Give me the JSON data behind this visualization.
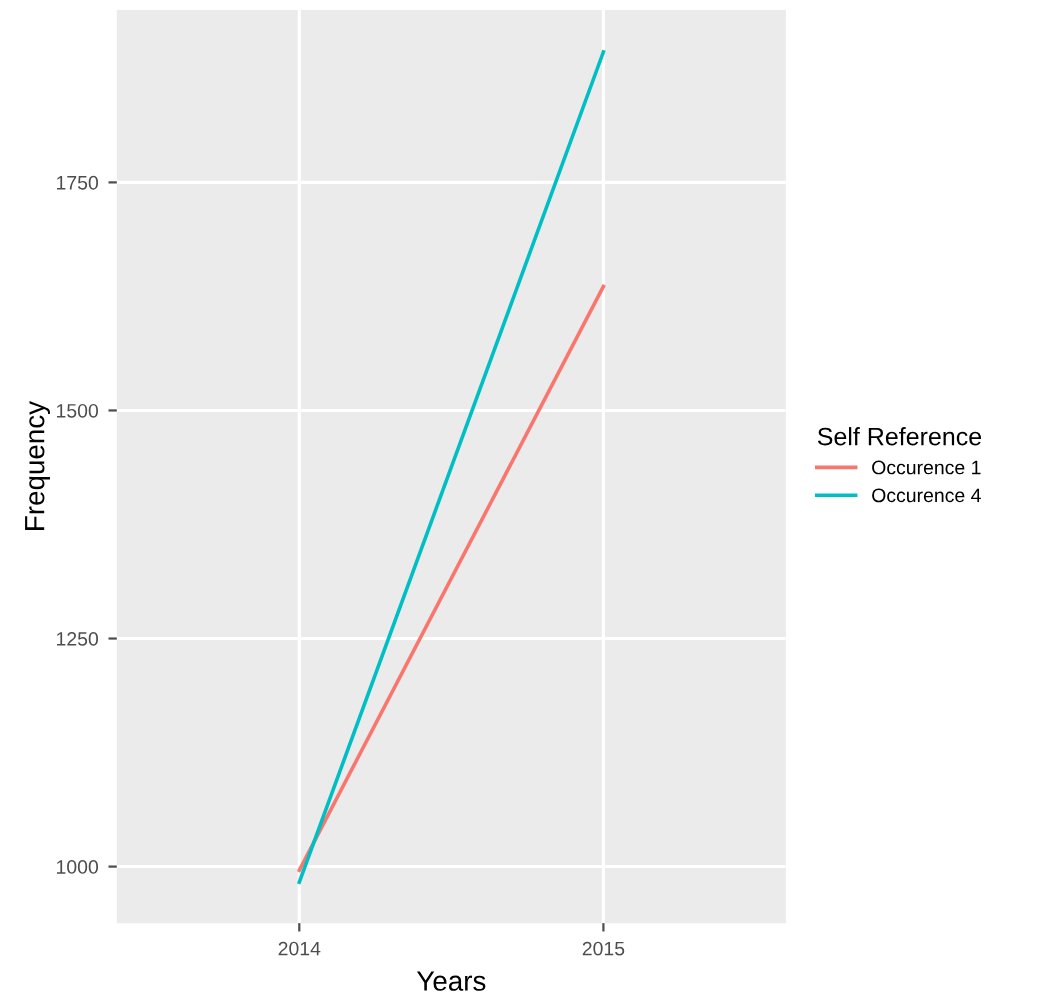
{
  "chart_data": {
    "type": "line",
    "xlabel": "Years",
    "ylabel": "Frequency",
    "legend_title": "Self Reference",
    "x": [
      2014,
      2015
    ],
    "series": [
      {
        "name": "Occurence 1",
        "color": "#f8766d",
        "values": [
          996,
          1636
        ]
      },
      {
        "name": "Occurence 4",
        "color": "#00bfc4",
        "values": [
          983,
          1893
        ]
      }
    ],
    "xlim": [
      2013.4,
      2015.6
    ],
    "xticks": [
      2014,
      2015
    ],
    "ylim": [
      938,
      1939
    ],
    "yticks": [
      1000,
      1250,
      1500,
      1750
    ],
    "grid": true,
    "legend": "right",
    "marker": "none",
    "line_style": "solid"
  }
}
